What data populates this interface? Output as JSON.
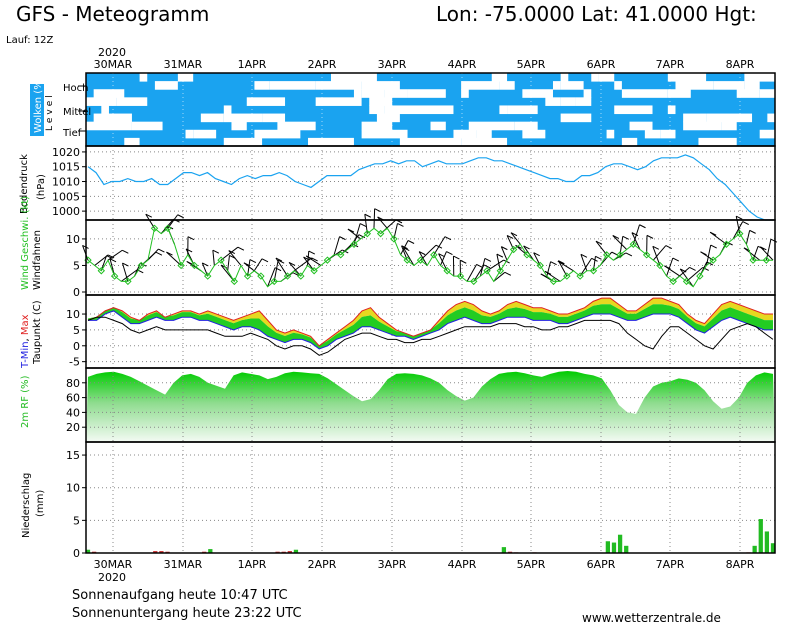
{
  "header": {
    "model": "GFS",
    "title": "GFS - Meteogramm",
    "coords": "Lon: -75.0000 Lat: 41.0000 Hgt:",
    "run": "Lauf: 12Z"
  },
  "axis": {
    "year_top": "2020",
    "year_bottom": "2020",
    "dates": [
      "30MAR",
      "31MAR",
      "1APR",
      "2APR",
      "3APR",
      "4APR",
      "5APR",
      "6APR",
      "7APR",
      "8APR"
    ]
  },
  "footer": {
    "sunrise": "Sonnenaufgang heute 10:47 UTC",
    "sunset": "Sonnenuntergang heute 23:22 UTC",
    "site": "www.wetterzentrale.de"
  },
  "colors": {
    "cloud": "#1aa3f0",
    "pressure": "#1aa3f0",
    "wind": "#22c022",
    "tmax": "#e02020",
    "tmin": "#2020e0",
    "fill_yellow": "#e6d820",
    "fill_green": "#22cc22",
    "rh": "#00cc00",
    "precip": "#22bb22",
    "precip_red": "#cc3333"
  },
  "chart_data": [
    {
      "panel": "clouds",
      "type": "heatmap",
      "ylabel": "Wolken (%)",
      "level_label": "Level",
      "levels": [
        "Hoch",
        "Mittel",
        "Tief"
      ]
    },
    {
      "panel": "pressure",
      "type": "line",
      "ylabel": "Bodendruck (hPa)",
      "yticks": [
        1000,
        1005,
        1010,
        1015,
        1020
      ],
      "ylim": [
        997,
        1022
      ],
      "y": [
        1015,
        1013,
        1009,
        1010,
        1010,
        1011,
        1010,
        1010,
        1011,
        1009,
        1009,
        1011,
        1013,
        1013,
        1012,
        1013,
        1011,
        1010,
        1009,
        1011,
        1012,
        1011,
        1012,
        1012,
        1013,
        1012,
        1010,
        1009,
        1008,
        1010,
        1012,
        1012,
        1012,
        1012,
        1014,
        1015,
        1016,
        1016,
        1017,
        1016,
        1017,
        1017,
        1015,
        1016,
        1017,
        1016,
        1016,
        1016,
        1017,
        1018,
        1018,
        1017,
        1017,
        1016,
        1015,
        1014,
        1013,
        1012,
        1011,
        1011,
        1010,
        1010,
        1012,
        1012,
        1013,
        1015,
        1016,
        1016,
        1015,
        1014,
        1015,
        1017,
        1018,
        1018,
        1018,
        1019,
        1018,
        1016,
        1014,
        1011,
        1009,
        1006,
        1003,
        1000,
        998,
        997,
        997
      ]
    },
    {
      "panel": "wind",
      "type": "line",
      "ylabel": "Wind Geschwi. (kt)",
      "ylabel2": "Windfahnen",
      "yticks": [
        0,
        5,
        10
      ],
      "ylim": [
        0,
        13
      ],
      "y": [
        6,
        5,
        4,
        6,
        3,
        2,
        2,
        3,
        5,
        6,
        12,
        11,
        12,
        9,
        5,
        7,
        5,
        4,
        3,
        5,
        6,
        4,
        2,
        5,
        3,
        4,
        3,
        1,
        2,
        2,
        3,
        4,
        3,
        5,
        4,
        5,
        6,
        7,
        7,
        8,
        9,
        10,
        11,
        12,
        11,
        12,
        10,
        7,
        6,
        5,
        6,
        5,
        7,
        5,
        4,
        3,
        3,
        2,
        2,
        3,
        4,
        2,
        4,
        6,
        8,
        9,
        7,
        6,
        5,
        3,
        2,
        2,
        3,
        4,
        3,
        4,
        4,
        5,
        7,
        6,
        7,
        8,
        9,
        8,
        7,
        6,
        5,
        3,
        2,
        3,
        2,
        1,
        3,
        5,
        6,
        7,
        9,
        10,
        11,
        9,
        6,
        6,
        6,
        6
      ]
    },
    {
      "panel": "temperature",
      "type": "area",
      "ylabel": "T-Min, Max",
      "ylabel2": "Taupunkt (C)",
      "yticks": [
        -5,
        0,
        5,
        10
      ],
      "ylim": [
        -7,
        16
      ],
      "tmax": [
        8,
        9,
        11,
        12,
        11,
        9,
        8,
        10,
        11,
        9,
        10,
        11,
        11,
        10,
        11,
        10,
        9,
        8,
        9,
        10,
        11,
        8,
        5,
        4,
        5,
        4,
        3,
        0,
        2,
        4,
        6,
        8,
        11,
        12,
        9,
        7,
        5,
        4,
        3,
        4,
        5,
        8,
        11,
        13,
        14,
        13,
        11,
        10,
        11,
        13,
        14,
        13,
        12,
        12,
        11,
        10,
        10,
        11,
        12,
        14,
        15,
        15,
        13,
        11,
        11,
        13,
        15,
        15,
        14,
        13,
        10,
        8,
        7,
        10,
        13,
        14,
        13,
        12,
        11,
        10,
        10
      ],
      "tmin": [
        8,
        8,
        10,
        11,
        9,
        7,
        7,
        8,
        9,
        8,
        8,
        9,
        9,
        8,
        8,
        7,
        6,
        5,
        6,
        6,
        5,
        3,
        2,
        1,
        2,
        2,
        1,
        -1,
        0,
        2,
        3,
        4,
        6,
        6,
        5,
        4,
        3,
        3,
        2,
        3,
        4,
        5,
        7,
        8,
        9,
        8,
        7,
        7,
        8,
        9,
        9,
        9,
        8,
        8,
        8,
        7,
        7,
        8,
        9,
        10,
        10,
        10,
        9,
        8,
        8,
        9,
        10,
        10,
        10,
        9,
        7,
        5,
        4,
        6,
        8,
        9,
        8,
        7,
        6,
        5,
        5
      ],
      "dewpoint": [
        8,
        9,
        9,
        8,
        7,
        5,
        4,
        5,
        6,
        5,
        5,
        5,
        5,
        5,
        5,
        4,
        3,
        3,
        3,
        4,
        3,
        2,
        0,
        -1,
        0,
        0,
        -1,
        -3,
        -2,
        0,
        2,
        3,
        4,
        4,
        3,
        2,
        2,
        1,
        1,
        2,
        2,
        3,
        4,
        5,
        6,
        6,
        6,
        6,
        7,
        7,
        7,
        6,
        6,
        5,
        5,
        6,
        6,
        7,
        8,
        8,
        8,
        8,
        7,
        4,
        2,
        0,
        -1,
        3,
        6,
        6,
        4,
        2,
        0,
        -1,
        2,
        5,
        6,
        7,
        6,
        4,
        2
      ]
    },
    {
      "panel": "humidity",
      "type": "area",
      "ylabel": "2m RF (%)",
      "yticks": [
        20,
        40,
        60,
        80
      ],
      "ylim": [
        0,
        100
      ],
      "y": [
        88,
        92,
        94,
        95,
        92,
        88,
        82,
        76,
        70,
        64,
        80,
        90,
        92,
        88,
        80,
        76,
        72,
        90,
        94,
        92,
        90,
        85,
        88,
        93,
        95,
        94,
        93,
        92,
        86,
        78,
        70,
        62,
        55,
        58,
        70,
        85,
        92,
        93,
        92,
        90,
        86,
        80,
        70,
        62,
        56,
        60,
        75,
        85,
        92,
        94,
        95,
        93,
        90,
        88,
        92,
        95,
        96,
        95,
        92,
        90,
        86,
        70,
        50,
        40,
        38,
        60,
        75,
        80,
        82,
        86,
        84,
        80,
        70,
        55,
        45,
        48,
        60,
        80,
        90,
        94,
        92
      ]
    },
    {
      "panel": "precipitation",
      "type": "bar",
      "ylabel": "Niederschlag (mm)",
      "yticks": [
        0,
        5,
        10,
        15
      ],
      "ylim": [
        0,
        17
      ],
      "y": [
        0.5,
        0.2,
        0,
        0,
        0,
        0,
        0,
        0,
        0,
        0,
        0,
        0.3,
        0.3,
        0.2,
        0,
        0,
        0,
        0,
        0,
        0.2,
        0.6,
        0,
        0,
        0,
        0,
        0,
        0,
        0,
        0,
        0,
        0,
        0.2,
        0.2,
        0.3,
        0.5,
        0,
        0,
        0,
        0,
        0,
        0,
        0,
        0,
        0,
        0,
        0,
        0,
        0,
        0,
        0,
        0,
        0,
        0,
        0,
        0,
        0,
        0,
        0,
        0,
        0,
        0,
        0,
        0,
        0,
        0,
        0,
        0,
        0,
        0.9,
        0.2,
        0.1,
        0,
        0,
        0.1,
        0,
        0,
        0,
        0,
        0,
        0,
        0,
        0,
        0,
        0,
        0,
        1.8,
        1.6,
        2.8,
        1.1,
        0,
        0,
        0,
        0,
        0,
        0,
        0,
        0,
        0,
        0,
        0,
        0,
        0,
        0,
        0,
        0,
        0,
        0,
        0,
        0.1,
        1.1,
        5.2,
        3.3,
        1.5
      ]
    }
  ]
}
